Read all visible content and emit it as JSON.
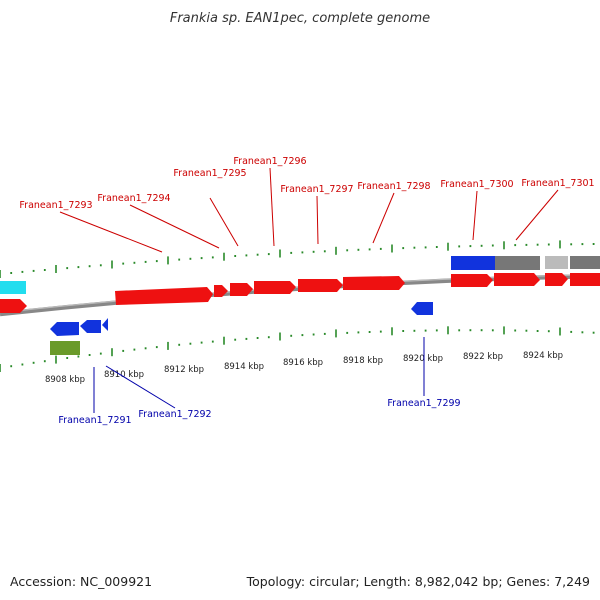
{
  "title": "Frankia sp. EAN1pec, complete genome",
  "footer": {
    "accession": "Accession: NC_009921",
    "topology": "Topology: circular; Length: 8,982,042 bp; Genes: 7,249"
  },
  "colors": {
    "forward_label": "#cc0000",
    "reverse_label": "#0000aa",
    "tick": "#2a8a2a",
    "backbone": "#888888",
    "gene_red": "#ee1111",
    "gene_blue": "#1133dd",
    "gene_grey": "#777777",
    "gene_light_grey": "#bbbbbb",
    "gene_cyan": "#22ddee",
    "gene_olive": "#6a9a2a"
  },
  "scale_labels": [
    "8908 kbp",
    "8910 kbp",
    "8912 kbp",
    "8914 kbp",
    "8916 kbp",
    "8918 kbp",
    "8920 kbp",
    "8922 kbp",
    "8924 kbp"
  ],
  "forward_genes": [
    "Franean1_7293",
    "Franean1_7294",
    "Franean1_7295",
    "Franean1_7296",
    "Franean1_7297",
    "Franean1_7298",
    "Franean1_7300",
    "Franean1_7301"
  ],
  "reverse_genes": [
    "Franean1_7291",
    "Franean1_7292",
    "Franean1_7299"
  ]
}
